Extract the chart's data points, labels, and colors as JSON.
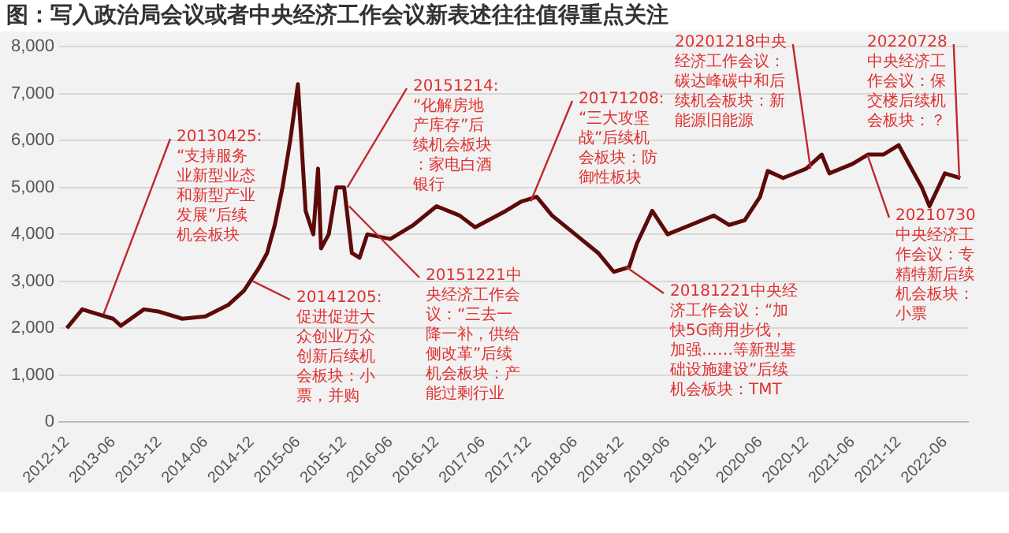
{
  "chart_data": {
    "type": "line",
    "title": "图：写入政治局会议或者中央经济工作会议新表述往往值得重点关注",
    "x": [
      "2012-12",
      "2013-02",
      "2013-04",
      "2013-06",
      "2013-07",
      "2013-10",
      "2013-12",
      "2014-03",
      "2014-06",
      "2014-09",
      "2014-11",
      "2015-01",
      "2015-02",
      "2015-03",
      "2015-04",
      "2015-05",
      "2015-06",
      "2015-07",
      "2015-08",
      "2015-08-20",
      "2015-09",
      "2015-10",
      "2015-11",
      "2015-12",
      "2016-01",
      "2016-02",
      "2016-03",
      "2016-06",
      "2016-09",
      "2016-12",
      "2017-03",
      "2017-05",
      "2017-09",
      "2017-11",
      "2018-01",
      "2018-03",
      "2018-06",
      "2018-09",
      "2018-11",
      "2019-01",
      "2019-02",
      "2019-04",
      "2019-06",
      "2019-09",
      "2019-12",
      "2020-02",
      "2020-04",
      "2020-06",
      "2020-07",
      "2020-09",
      "2020-12",
      "2021-02",
      "2021-03",
      "2021-06",
      "2021-08",
      "2021-10",
      "2021-12",
      "2022-01",
      "2022-03",
      "2022-04",
      "2022-06",
      "2022-08"
    ],
    "series": [
      {
        "color": "#5c0a0a",
        "values": [
          2000,
          2400,
          2300,
          2200,
          2050,
          2400,
          2350,
          2200,
          2250,
          2500,
          2800,
          3300,
          3600,
          4200,
          5000,
          6000,
          7200,
          4500,
          4000,
          5400,
          3700,
          4000,
          5000,
          5000,
          3600,
          3500,
          4000,
          3900,
          4200,
          4600,
          4400,
          4150,
          4500,
          4700,
          4800,
          4400,
          4000,
          3600,
          3200,
          3300,
          3800,
          4500,
          4000,
          4200,
          4400,
          4200,
          4300,
          4800,
          5350,
          5200,
          5400,
          5700,
          5300,
          5500,
          5700,
          5700,
          5900,
          5600,
          5000,
          4600,
          5300,
          5200
        ]
      }
    ],
    "xlim": [
      "2012-11",
      "2022-09"
    ],
    "xticks": [
      "2012-12",
      "2013-06",
      "2013-12",
      "2014-06",
      "2014-12",
      "2015-06",
      "2015-12",
      "2016-06",
      "2016-12",
      "2017-06",
      "2017-12",
      "2018-06",
      "2018-12",
      "2019-06",
      "2019-12",
      "2020-06",
      "2020-12",
      "2021-06",
      "2021-12",
      "2022-06"
    ],
    "ylim": [
      0,
      8000
    ],
    "yticks": [
      {
        "value": 0,
        "label": "0"
      },
      {
        "value": 1000,
        "label": "1,000"
      },
      {
        "value": 2000,
        "label": "2,000"
      },
      {
        "value": 3000,
        "label": "3,000"
      },
      {
        "value": 4000,
        "label": "4,000"
      },
      {
        "value": 5000,
        "label": "5,000"
      },
      {
        "value": 6000,
        "label": "6,000"
      },
      {
        "value": 7000,
        "label": "7,000"
      },
      {
        "value": 8000,
        "label": "8,000"
      }
    ],
    "grid": "y",
    "legend": false,
    "marker": "none",
    "line_style": "solid",
    "annotations": [
      {
        "text": "20130425:“支持服务业新型业态和新型产业发展”后续机会板块",
        "x": "2013-04-25",
        "y": 2300
      },
      {
        "text": "20141205:促进促进大众创业万众创新后续机会板块：小票，并购",
        "x": "2014-12-05",
        "y": 3000
      },
      {
        "text": "20151214:“化解房地产库存”后续机会板块：家电白酒银行",
        "x": "2015-12-14",
        "y": 5000
      },
      {
        "text": "20151221中央经济工作会议：“三去一降一补，供给侧改革”后续机会板块：产能过剩行业",
        "x": "2015-12-21",
        "y": 4600
      },
      {
        "text": "20171208:“三大攻坚战”后续机会板块：防御性板块",
        "x": "2017-12-08",
        "y": 4700
      },
      {
        "text": "20181221中央经济工作会议：“加快5G商用步伐，加强……等新型基础设施建设”后续机会板块：TMT",
        "x": "2018-12-21",
        "y": 3300
      },
      {
        "text": "20201218中央经济工作会议：碳达峰碳中和后续机会板块：新能源旧能源",
        "x": "2020-12-18",
        "y": 5400
      },
      {
        "text": "20210730中央经济工作会议：专精特新后续机会板块：小票",
        "x": "2021-07-30",
        "y": 5700
      },
      {
        "text": "20220728中央经济工作会议：保交楼后续机会板块：？",
        "x": "2022-07-28",
        "y": 5200
      }
    ]
  }
}
